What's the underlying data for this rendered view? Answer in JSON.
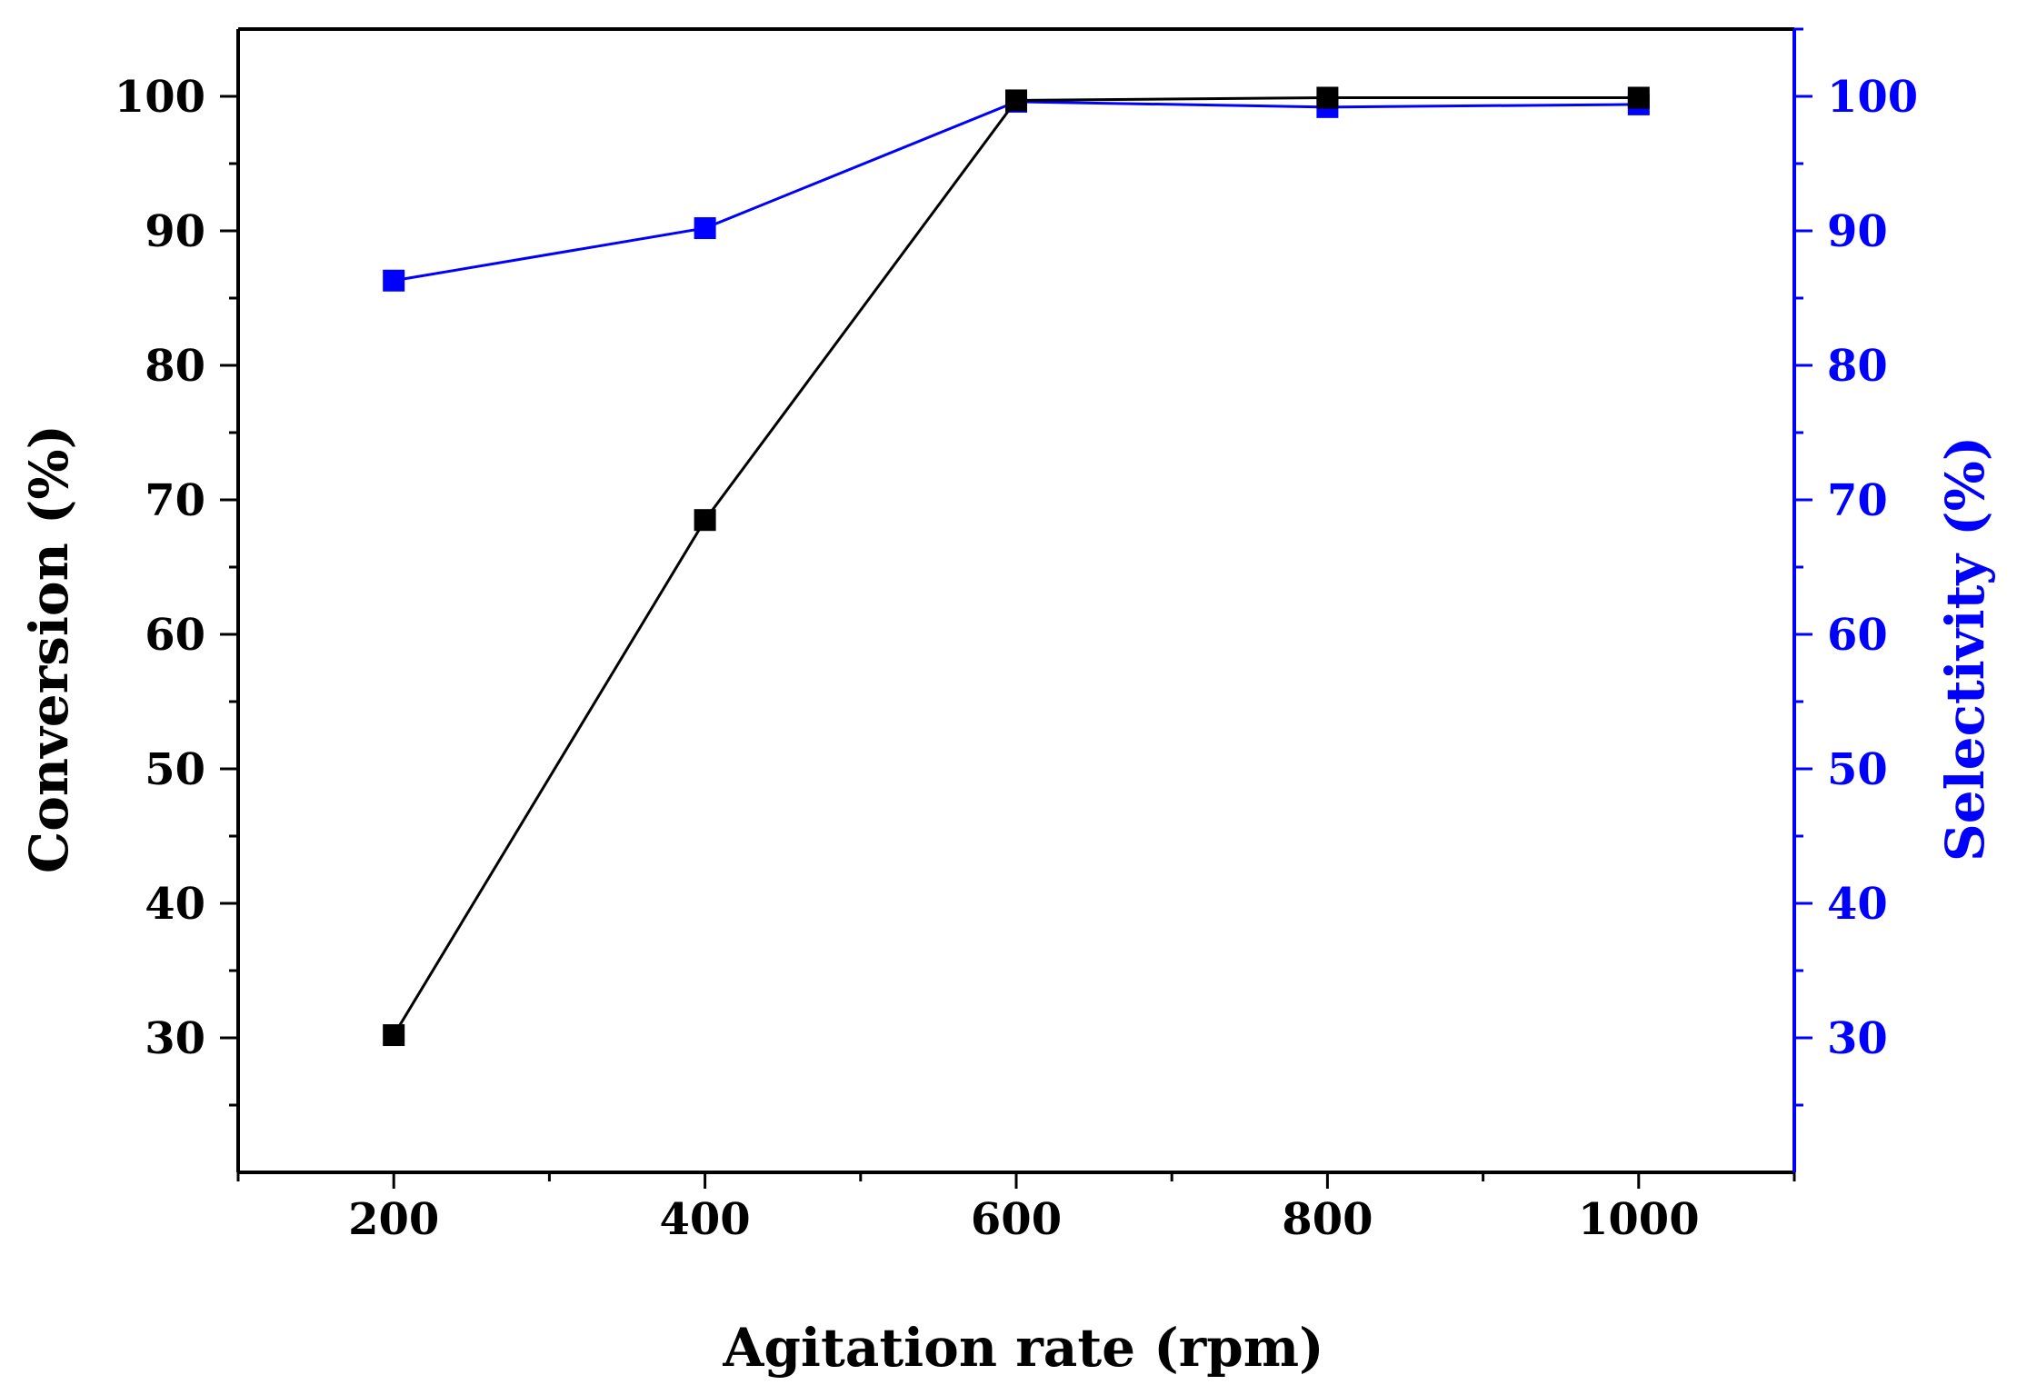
{
  "chart_data": {
    "type": "line",
    "title": "",
    "xlabel": "Agitation rate (rpm)",
    "ylabel_left": "Conversion (%)",
    "ylabel_right": "Selectivity (%)",
    "x": [
      200,
      400,
      600,
      800,
      1000
    ],
    "xlim": [
      100,
      1100
    ],
    "ylim_left": [
      20,
      105
    ],
    "ylim_right": [
      20,
      105
    ],
    "x_ticks": [
      "200",
      "400",
      "600",
      "800",
      "1000"
    ],
    "y_ticks_left": [
      "30",
      "40",
      "50",
      "60",
      "70",
      "80",
      "90",
      "100"
    ],
    "y_ticks_right": [
      "30",
      "40",
      "50",
      "60",
      "70",
      "80",
      "90",
      "100"
    ],
    "grid": false,
    "legend": "none",
    "colors": {
      "conversion": "#000000",
      "selectivity": "#0000ff"
    },
    "series": [
      {
        "key": "conversion",
        "axis": "left",
        "values": [
          30.2,
          68.5,
          99.7,
          99.9,
          99.9
        ]
      },
      {
        "key": "selectivity",
        "axis": "right",
        "values": [
          86.3,
          90.2,
          99.6,
          99.2,
          99.4
        ]
      }
    ]
  }
}
